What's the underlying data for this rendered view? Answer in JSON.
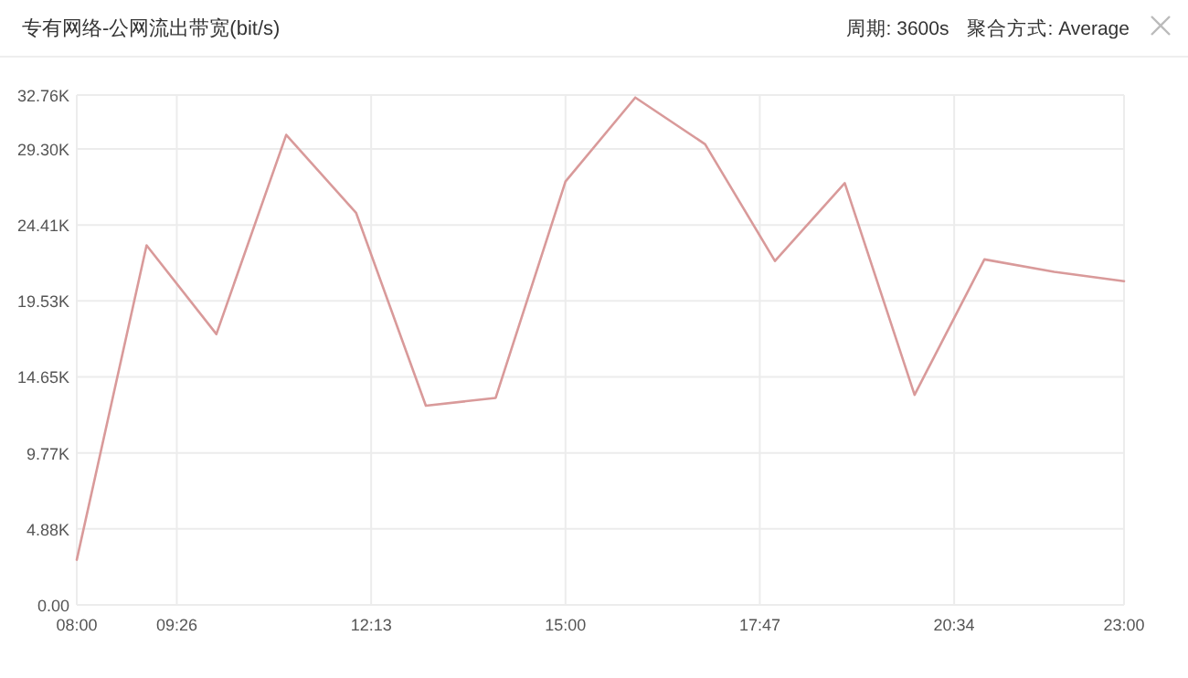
{
  "chart_data": {
    "type": "line",
    "title": "专有网络-公网流出带宽(bit/s)",
    "annotations": [
      "周期: 3600s",
      "聚合方式: Average"
    ],
    "x": [
      8,
      9,
      10,
      11,
      12,
      13,
      14,
      15,
      16,
      17,
      18,
      19,
      20,
      21,
      22,
      23
    ],
    "series": [
      {
        "color": "#d99a9a",
        "values": [
          2900,
          23100,
          17400,
          30200,
          25200,
          12800,
          13300,
          27200,
          32600,
          29600,
          22100,
          27100,
          13500,
          22200,
          21400,
          20800
        ]
      }
    ],
    "xlim": [
      8,
      23
    ],
    "xticks": [
      {
        "value": 8,
        "label": "08:00"
      },
      {
        "value": 9.433,
        "label": "09:26"
      },
      {
        "value": 12.217,
        "label": "12:13"
      },
      {
        "value": 15,
        "label": "15:00"
      },
      {
        "value": 17.783,
        "label": "17:47"
      },
      {
        "value": 20.567,
        "label": "20:34"
      },
      {
        "value": 23,
        "label": "23:00"
      }
    ],
    "ylim": [
      0,
      32760
    ],
    "yticks": [
      {
        "value": 0,
        "label": "0.00"
      },
      {
        "value": 4882.8,
        "label": "4.88K"
      },
      {
        "value": 9765.6,
        "label": "9.77K"
      },
      {
        "value": 14648.4,
        "label": "14.65K"
      },
      {
        "value": 19531.3,
        "label": "19.53K"
      },
      {
        "value": 24414.1,
        "label": "24.41K"
      },
      {
        "value": 29296.9,
        "label": "29.30K"
      },
      {
        "value": 32760,
        "label": "32.76K"
      }
    ],
    "grid": true,
    "marker": "none",
    "line_style": "solid"
  }
}
